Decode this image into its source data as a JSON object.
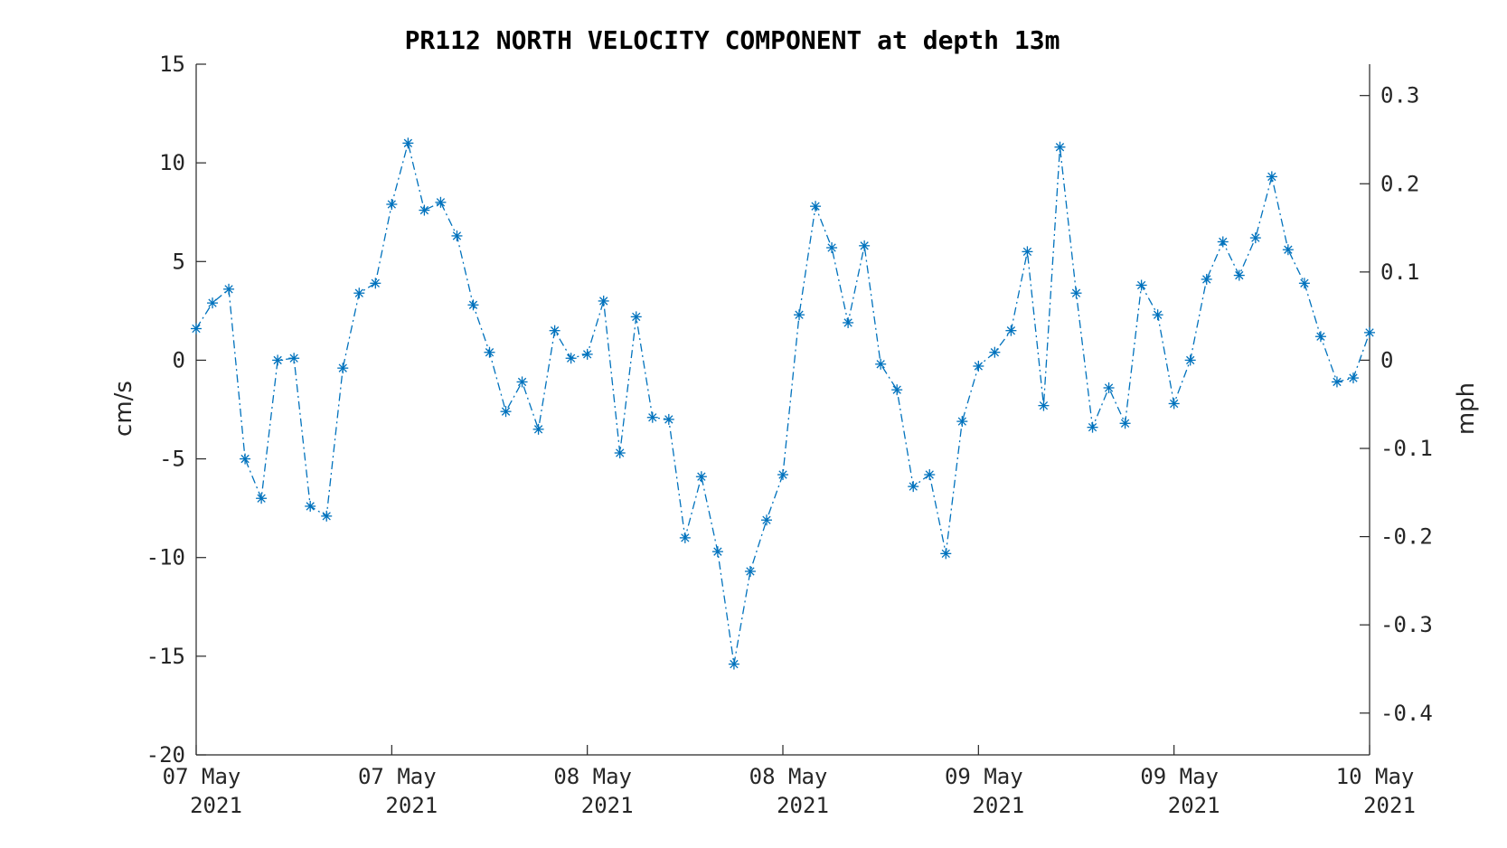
{
  "colors": {
    "series": "#0072BD",
    "axis": "#262626",
    "background": "#ffffff"
  },
  "chart_data": {
    "type": "line",
    "title": "PR112 NORTH VELOCITY COMPONENT at depth 13m",
    "ylabel": "cm/s",
    "ylabel_right": "mph",
    "ylim": [
      -20,
      15
    ],
    "yticks": [
      -20,
      -15,
      -10,
      -5,
      0,
      5,
      10,
      15
    ],
    "yticks_right": [
      -0.4,
      -0.3,
      -0.2,
      -0.1,
      0,
      0.1,
      0.2,
      0.3
    ],
    "yticklabels_right": [
      "-0.4",
      "-0.3",
      "-0.2",
      "-0.1",
      "0",
      "0.1",
      "0.2",
      "0.3"
    ],
    "xlim": [
      "2021-05-07 00:00",
      "2021-05-10 00:00"
    ],
    "xticks": [
      {
        "line1": "07 May",
        "line2": "2021",
        "time": "2021-05-07 00:00"
      },
      {
        "line1": "07 May",
        "line2": "2021",
        "time": "2021-05-07 12:00"
      },
      {
        "line1": "08 May",
        "line2": "2021",
        "time": "2021-05-08 00:00"
      },
      {
        "line1": "08 May",
        "line2": "2021",
        "time": "2021-05-08 12:00"
      },
      {
        "line1": "09 May",
        "line2": "2021",
        "time": "2021-05-09 00:00"
      },
      {
        "line1": "09 May",
        "line2": "2021",
        "time": "2021-05-09 12:00"
      },
      {
        "line1": "10 May",
        "line2": "2021",
        "time": "2021-05-10 00:00"
      }
    ],
    "grid": false,
    "line_style": "dash-dot",
    "marker": "asterisk",
    "series": [
      {
        "x": [
          "2021-05-07 00:00",
          "2021-05-07 01:00",
          "2021-05-07 02:00",
          "2021-05-07 03:00",
          "2021-05-07 04:00",
          "2021-05-07 05:00",
          "2021-05-07 06:00",
          "2021-05-07 07:00",
          "2021-05-07 08:00",
          "2021-05-07 09:00",
          "2021-05-07 10:00",
          "2021-05-07 11:00",
          "2021-05-07 12:00",
          "2021-05-07 13:00",
          "2021-05-07 14:00",
          "2021-05-07 15:00",
          "2021-05-07 16:00",
          "2021-05-07 17:00",
          "2021-05-07 18:00",
          "2021-05-07 19:00",
          "2021-05-07 20:00",
          "2021-05-07 21:00",
          "2021-05-07 22:00",
          "2021-05-07 23:00",
          "2021-05-08 00:00",
          "2021-05-08 01:00",
          "2021-05-08 02:00",
          "2021-05-08 03:00",
          "2021-05-08 04:00",
          "2021-05-08 05:00",
          "2021-05-08 06:00",
          "2021-05-08 07:00",
          "2021-05-08 08:00",
          "2021-05-08 09:00",
          "2021-05-08 10:00",
          "2021-05-08 11:00",
          "2021-05-08 12:00",
          "2021-05-08 13:00",
          "2021-05-08 14:00",
          "2021-05-08 15:00",
          "2021-05-08 16:00",
          "2021-05-08 17:00",
          "2021-05-08 18:00",
          "2021-05-08 19:00",
          "2021-05-08 20:00",
          "2021-05-08 21:00",
          "2021-05-08 22:00",
          "2021-05-08 23:00",
          "2021-05-09 00:00",
          "2021-05-09 01:00",
          "2021-05-09 02:00",
          "2021-05-09 03:00",
          "2021-05-09 04:00",
          "2021-05-09 05:00",
          "2021-05-09 06:00",
          "2021-05-09 07:00",
          "2021-05-09 08:00",
          "2021-05-09 09:00",
          "2021-05-09 10:00",
          "2021-05-09 11:00",
          "2021-05-09 12:00",
          "2021-05-09 13:00",
          "2021-05-09 14:00",
          "2021-05-09 15:00",
          "2021-05-09 16:00",
          "2021-05-09 17:00",
          "2021-05-09 18:00",
          "2021-05-09 19:00",
          "2021-05-09 20:00",
          "2021-05-09 21:00",
          "2021-05-09 22:00",
          "2021-05-09 23:00",
          "2021-05-10 00:00"
        ],
        "y": [
          1.6,
          2.9,
          3.6,
          -5.0,
          -7.0,
          0.0,
          0.1,
          -7.4,
          -7.9,
          -0.4,
          3.4,
          3.9,
          7.9,
          11.0,
          7.6,
          8.0,
          6.3,
          2.8,
          0.4,
          -2.6,
          -1.1,
          -3.5,
          1.5,
          0.1,
          0.3,
          3.0,
          -4.7,
          2.2,
          -2.9,
          -3.0,
          -9.0,
          -5.9,
          -9.7,
          -15.4,
          -10.7,
          -8.1,
          -5.8,
          2.3,
          7.8,
          5.7,
          1.9,
          5.8,
          -0.2,
          -1.5,
          -6.4,
          -5.8,
          -9.8,
          -3.1,
          -0.3,
          0.4,
          1.5,
          5.5,
          -2.3,
          10.8,
          3.4,
          -3.4,
          -1.4,
          -3.2,
          3.8,
          2.3,
          -2.2,
          0.0,
          4.1,
          6.0,
          4.3,
          6.2,
          9.3,
          5.6,
          3.9,
          1.2,
          -1.1,
          -0.9,
          1.4
        ]
      }
    ]
  }
}
